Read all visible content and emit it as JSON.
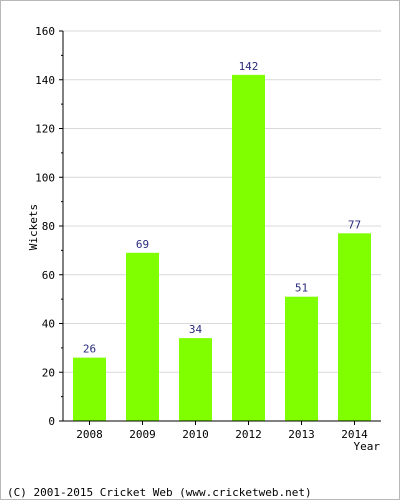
{
  "chart_data": {
    "type": "bar",
    "categories": [
      "2008",
      "2009",
      "2010",
      "2012",
      "2013",
      "2014"
    ],
    "values": [
      26,
      69,
      34,
      142,
      51,
      77
    ],
    "title": "",
    "xlabel": "Year",
    "ylabel": "Wickets",
    "ylim": [
      0,
      160
    ],
    "yticks": [
      0,
      20,
      40,
      60,
      80,
      100,
      120,
      140,
      160
    ],
    "grid": true,
    "colors": {
      "bar": "#7fff00",
      "grid": "#d9d9d9",
      "axis": "#000000",
      "value_label": "#2b2b7f"
    }
  },
  "footer": {
    "text": "(C) 2001-2015 Cricket Web (www.cricketweb.net)"
  }
}
